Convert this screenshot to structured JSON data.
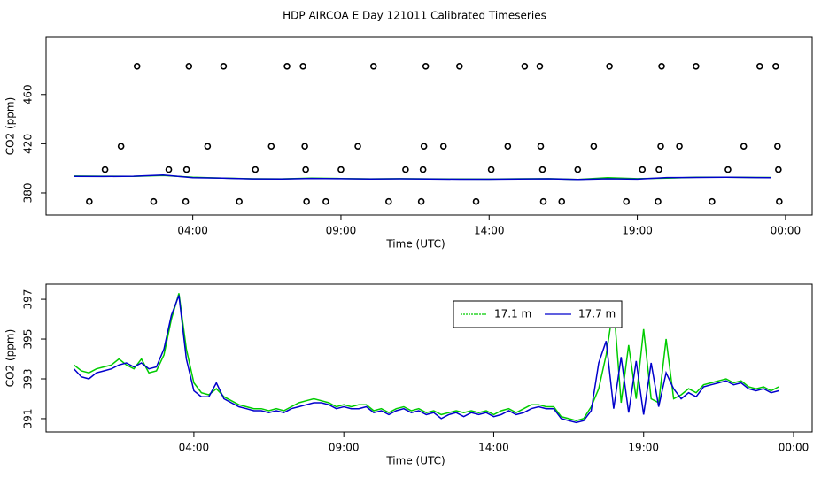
{
  "title": "HDP AIRCOA E  Day 121011  Calibrated Timeseries",
  "chart_data": [
    {
      "type": "line",
      "xlabel": "Time (UTC)",
      "ylabel": "CO2 (ppm)",
      "xlim": [
        -0.95,
        24.9
      ],
      "ylim": [
        362,
        506.6
      ],
      "xticks": [
        {
          "value": 4,
          "label": "04:00"
        },
        {
          "value": 9,
          "label": "09:00"
        },
        {
          "value": 14,
          "label": "14:00"
        },
        {
          "value": 19,
          "label": "19:00"
        },
        {
          "value": 24,
          "label": "00:00"
        }
      ],
      "yticks": [
        380,
        420,
        460
      ],
      "series": [
        {
          "color": "#00cc00",
          "x": [
            0,
            1,
            2,
            3,
            4,
            5,
            6,
            7,
            8,
            9,
            10,
            11,
            12,
            13,
            14,
            15,
            16,
            17,
            18,
            19,
            20,
            21,
            22,
            23,
            23.5
          ],
          "values": [
            393.7,
            393.6,
            393.5,
            394.2,
            392.8,
            392.1,
            391.5,
            391.4,
            392.0,
            391.7,
            391.4,
            391.6,
            391.4,
            391.3,
            391.2,
            391.5,
            391.6,
            391.0,
            392.4,
            391.6,
            392.0,
            392.7,
            392.8,
            392.6,
            392.6
          ]
        },
        {
          "color": "#0000cc",
          "x": [
            0,
            1,
            2,
            3,
            4,
            5,
            6,
            7,
            8,
            9,
            10,
            11,
            12,
            13,
            14,
            15,
            16,
            17,
            18,
            19,
            20,
            21,
            22,
            23,
            23.5
          ],
          "values": [
            393.5,
            393.4,
            393.6,
            394.5,
            392.4,
            392.0,
            391.4,
            391.3,
            391.8,
            391.6,
            391.3,
            391.5,
            391.3,
            391.1,
            391.1,
            391.3,
            391.5,
            390.9,
            391.5,
            391.2,
            392.5,
            392.6,
            392.7,
            392.5,
            392.4
          ]
        },
        {
          "color": "#000000",
          "mode": "markers",
          "x": [
            2.12,
            3.87,
            5.04,
            7.18,
            7.72,
            10.1,
            11.86,
            13.0,
            15.2,
            15.71,
            18.06,
            19.82,
            20.98,
            23.13,
            23.67,
            1.58,
            4.5,
            6.65,
            7.78,
            9.57,
            11.8,
            12.46,
            14.63,
            15.74,
            17.53,
            19.79,
            20.42,
            22.59,
            23.73,
            1.04,
            3.19,
            3.79,
            6.11,
            7.81,
            9.0,
            11.18,
            11.77,
            14.07,
            15.8,
            16.99,
            19.17,
            19.73,
            22.06,
            23.76,
            0.51,
            2.68,
            3.76,
            5.57,
            7.84,
            8.49,
            10.61,
            11.71,
            13.56,
            15.83,
            16.45,
            18.63,
            19.7,
            21.52,
            23.79
          ],
          "values": [
            483,
            483,
            483,
            483,
            483,
            483,
            483,
            483,
            483,
            483,
            483,
            483,
            483,
            483,
            483,
            418,
            418,
            418,
            418,
            418,
            418,
            418,
            418,
            418,
            418,
            418,
            418,
            418,
            418,
            399,
            399,
            399,
            399,
            399,
            399,
            399,
            399,
            399,
            399,
            399,
            399,
            399,
            399,
            399,
            373,
            373,
            373,
            373,
            373,
            373,
            373,
            373,
            373,
            373,
            373,
            373,
            373,
            373,
            373
          ]
        }
      ]
    },
    {
      "type": "line",
      "xlabel": "Time (UTC)",
      "ylabel": "CO2 (ppm)",
      "xlim": [
        -0.93,
        24.62
      ],
      "ylim": [
        390.33,
        397.76
      ],
      "xticks": [
        {
          "value": 4,
          "label": "04:00"
        },
        {
          "value": 9,
          "label": "09:00"
        },
        {
          "value": 14,
          "label": "14:00"
        },
        {
          "value": 19,
          "label": "19:00"
        },
        {
          "value": 24,
          "label": "00:00"
        }
      ],
      "yticks": [
        391,
        393,
        395,
        397
      ],
      "legend": "top-right",
      "series": [
        {
          "name": "17.1 m",
          "color": "#00cc00",
          "x": [
            0,
            0.25,
            0.5,
            0.75,
            1,
            1.25,
            1.5,
            1.75,
            2,
            2.25,
            2.5,
            2.75,
            3,
            3.25,
            3.5,
            3.75,
            4,
            4.25,
            4.5,
            4.75,
            5,
            5.25,
            5.5,
            5.75,
            6,
            6.25,
            6.5,
            6.75,
            7,
            7.25,
            7.5,
            7.75,
            8,
            8.25,
            8.5,
            8.75,
            9,
            9.25,
            9.5,
            9.75,
            10,
            10.25,
            10.5,
            10.75,
            11,
            11.25,
            11.5,
            11.75,
            12,
            12.25,
            12.5,
            12.75,
            13,
            13.25,
            13.5,
            13.75,
            14,
            14.25,
            14.5,
            14.75,
            15,
            15.25,
            15.5,
            15.75,
            16,
            16.25,
            16.5,
            16.75,
            17,
            17.25,
            17.5,
            17.75,
            18,
            18.25,
            18.5,
            18.75,
            19,
            19.25,
            19.5,
            19.75,
            20,
            20.25,
            20.5,
            20.75,
            21,
            21.25,
            21.5,
            21.75,
            22,
            22.25,
            22.5,
            22.75,
            23,
            23.25,
            23.5
          ],
          "values": [
            393.7,
            393.4,
            393.3,
            393.5,
            393.6,
            393.7,
            394.0,
            393.7,
            393.5,
            394.0,
            393.3,
            393.4,
            394.2,
            396.0,
            397.3,
            394.5,
            392.8,
            392.3,
            392.2,
            392.5,
            392.1,
            391.9,
            391.7,
            391.6,
            391.5,
            391.5,
            391.4,
            391.5,
            391.4,
            391.6,
            391.8,
            391.9,
            392.0,
            391.9,
            391.8,
            391.6,
            391.7,
            391.6,
            391.7,
            391.7,
            391.4,
            391.5,
            391.3,
            391.5,
            391.6,
            391.4,
            391.5,
            391.3,
            391.4,
            391.2,
            391.3,
            391.4,
            391.3,
            391.4,
            391.3,
            391.4,
            391.2,
            391.4,
            391.5,
            391.3,
            391.5,
            391.7,
            391.7,
            391.6,
            391.6,
            391.1,
            391.0,
            390.9,
            391.0,
            391.6,
            392.5,
            394.2,
            396.7,
            391.8,
            394.7,
            392.0,
            395.5,
            392.0,
            391.8,
            395.0,
            392.0,
            392.2,
            392.5,
            392.3,
            392.7,
            392.8,
            392.9,
            393.0,
            392.8,
            392.9,
            392.6,
            392.5,
            392.6,
            392.4,
            392.6
          ]
        },
        {
          "name": "17.7 m",
          "color": "#0000cc",
          "x": [
            0,
            0.25,
            0.5,
            0.75,
            1,
            1.25,
            1.5,
            1.75,
            2,
            2.25,
            2.5,
            2.75,
            3,
            3.25,
            3.5,
            3.75,
            4,
            4.25,
            4.5,
            4.75,
            5,
            5.25,
            5.5,
            5.75,
            6,
            6.25,
            6.5,
            6.75,
            7,
            7.25,
            7.5,
            7.75,
            8,
            8.25,
            8.5,
            8.75,
            9,
            9.25,
            9.5,
            9.75,
            10,
            10.25,
            10.5,
            10.75,
            11,
            11.25,
            11.5,
            11.75,
            12,
            12.25,
            12.5,
            12.75,
            13,
            13.25,
            13.5,
            13.75,
            14,
            14.25,
            14.5,
            14.75,
            15,
            15.25,
            15.5,
            15.75,
            16,
            16.25,
            16.5,
            16.75,
            17,
            17.25,
            17.5,
            17.75,
            18,
            18.25,
            18.5,
            18.75,
            19,
            19.25,
            19.5,
            19.75,
            20,
            20.25,
            20.5,
            20.75,
            21,
            21.25,
            21.5,
            21.75,
            22,
            22.25,
            22.5,
            22.75,
            23,
            23.25,
            23.5
          ],
          "values": [
            393.5,
            393.1,
            393.0,
            393.3,
            393.4,
            393.5,
            393.7,
            393.8,
            393.6,
            393.8,
            393.5,
            393.6,
            394.5,
            396.2,
            397.2,
            394.0,
            392.4,
            392.1,
            392.1,
            392.8,
            392.0,
            391.8,
            391.6,
            391.5,
            391.4,
            391.4,
            391.3,
            391.4,
            391.3,
            391.5,
            391.6,
            391.7,
            391.8,
            391.8,
            391.7,
            391.5,
            391.6,
            391.5,
            391.5,
            391.6,
            391.3,
            391.4,
            391.2,
            391.4,
            391.5,
            391.3,
            391.4,
            391.2,
            391.3,
            391.0,
            391.2,
            391.3,
            391.1,
            391.3,
            391.2,
            391.3,
            391.1,
            391.2,
            391.4,
            391.2,
            391.3,
            391.5,
            391.6,
            391.5,
            391.5,
            391.0,
            390.9,
            390.8,
            390.9,
            391.4,
            393.8,
            394.9,
            391.5,
            394.1,
            391.3,
            393.9,
            391.2,
            393.8,
            391.6,
            393.3,
            392.5,
            392.0,
            392.3,
            392.1,
            392.6,
            392.7,
            392.8,
            392.9,
            392.7,
            392.8,
            392.5,
            392.4,
            392.5,
            392.3,
            392.4
          ]
        }
      ]
    }
  ]
}
